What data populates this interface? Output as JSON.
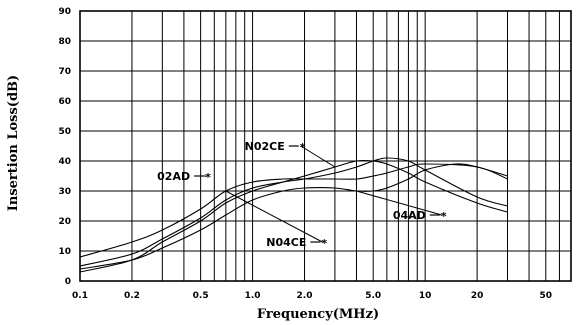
{
  "chart_data": {
    "type": "line",
    "xlabel": "Frequency(MHz)",
    "ylabel": "Insertion Loss(dB)",
    "x_scale": "log",
    "xlim": [
      0.1,
      70
    ],
    "ylim": [
      0,
      90
    ],
    "grid": true,
    "x_ticks": [
      {
        "value": 0.1,
        "label": "0.1"
      },
      {
        "value": 0.2,
        "label": "0.2"
      },
      {
        "value": 0.5,
        "label": "0.5"
      },
      {
        "value": 1,
        "label": "1.0"
      },
      {
        "value": 2,
        "label": "2.0"
      },
      {
        "value": 5,
        "label": "5.0"
      },
      {
        "value": 10,
        "label": "10"
      },
      {
        "value": 20,
        "label": "20"
      },
      {
        "value": 50,
        "label": "50"
      }
    ],
    "x_gridlines": [
      0.1,
      0.2,
      0.3,
      0.4,
      0.5,
      0.6,
      0.7,
      0.8,
      0.9,
      1,
      2,
      3,
      4,
      5,
      6,
      7,
      8,
      9,
      10,
      20,
      30,
      40,
      50,
      60,
      70
    ],
    "y_ticks": [
      0,
      10,
      20,
      30,
      40,
      50,
      60,
      70,
      80,
      90
    ],
    "series": [
      {
        "name": "N02CE",
        "label": "N02CE",
        "points": [
          [
            0.1,
            3
          ],
          [
            0.2,
            7
          ],
          [
            0.3,
            13
          ],
          [
            0.5,
            20
          ],
          [
            0.7,
            26
          ],
          [
            1.0,
            30
          ],
          [
            1.5,
            33
          ],
          [
            2.0,
            35
          ],
          [
            3.0,
            38
          ],
          [
            4.0,
            40
          ],
          [
            5.0,
            40
          ],
          [
            6.0,
            39
          ],
          [
            8.0,
            36
          ],
          [
            10.0,
            33
          ],
          [
            20.0,
            26
          ],
          [
            30.0,
            23
          ]
        ]
      },
      {
        "name": "02AD",
        "label": "02AD",
        "points": [
          [
            0.1,
            5
          ],
          [
            0.2,
            9
          ],
          [
            0.3,
            14
          ],
          [
            0.5,
            21
          ],
          [
            0.7,
            27
          ],
          [
            1.0,
            31
          ],
          [
            1.5,
            33
          ],
          [
            2.0,
            34
          ],
          [
            3.0,
            36
          ],
          [
            4.0,
            38
          ],
          [
            5.0,
            40
          ],
          [
            6.0,
            41
          ],
          [
            8.0,
            40
          ],
          [
            10.0,
            37
          ],
          [
            20.0,
            28
          ],
          [
            30.0,
            25
          ]
        ]
      },
      {
        "name": "04AD",
        "label": "04AD",
        "points": [
          [
            0.1,
            4
          ],
          [
            0.2,
            7
          ],
          [
            0.3,
            11
          ],
          [
            0.5,
            17
          ],
          [
            0.7,
            22
          ],
          [
            1.0,
            27
          ],
          [
            1.5,
            30
          ],
          [
            2.0,
            31
          ],
          [
            3.0,
            31
          ],
          [
            4.0,
            30
          ],
          [
            5.0,
            30
          ],
          [
            6.0,
            31
          ],
          [
            8.0,
            34
          ],
          [
            10.0,
            37
          ],
          [
            15.0,
            39
          ],
          [
            20.0,
            38
          ],
          [
            30.0,
            35
          ]
        ]
      },
      {
        "name": "N04CE",
        "label": "N04CE",
        "points": [
          [
            0.1,
            8
          ],
          [
            0.2,
            13
          ],
          [
            0.3,
            17
          ],
          [
            0.5,
            24
          ],
          [
            0.7,
            30
          ],
          [
            1.0,
            33
          ],
          [
            1.5,
            34
          ],
          [
            2.0,
            34
          ],
          [
            3.0,
            34
          ],
          [
            4.0,
            34
          ],
          [
            5.0,
            35
          ],
          [
            6.0,
            36
          ],
          [
            8.0,
            38
          ],
          [
            10.0,
            39
          ],
          [
            20.0,
            38
          ],
          [
            30.0,
            34
          ]
        ]
      }
    ],
    "annotations": [
      {
        "series": "N02CE",
        "text": "N02CE",
        "label_at": [
          0.9,
          45
        ],
        "points_to": [
          3.0,
          38
        ]
      },
      {
        "series": "02AD",
        "text": "02AD",
        "label_at": [
          0.28,
          35
        ],
        "points_to": [
          0.5,
          35
        ]
      },
      {
        "series": "04AD",
        "text": "04AD",
        "label_at": [
          6.5,
          22
        ],
        "points_to": [
          4.0,
          30
        ]
      },
      {
        "series": "N04CE",
        "text": "N04CE",
        "label_at": [
          1.2,
          13
        ],
        "points_to": [
          0.7,
          30
        ]
      }
    ]
  }
}
